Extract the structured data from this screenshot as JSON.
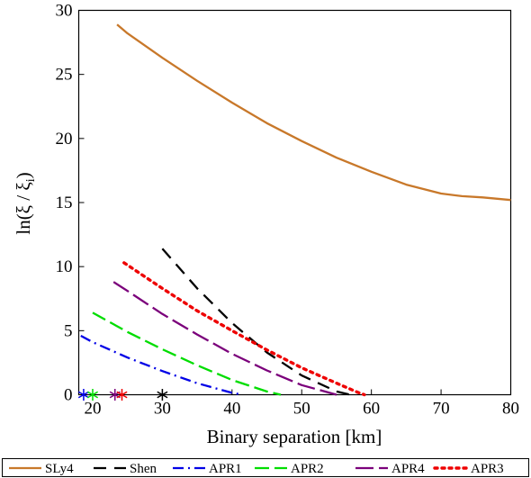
{
  "chart_data": {
    "type": "line",
    "xlabel": "Binary separation [km]",
    "ylabel": "ln(ξ / ξ",
    "ylabel_subscript": "i",
    "ylabel_close": ")",
    "xlim": [
      18,
      80
    ],
    "ylim": [
      0,
      30
    ],
    "xticks": [
      20,
      30,
      40,
      50,
      60,
      70,
      80
    ],
    "yticks": [
      0,
      5,
      10,
      15,
      20,
      25,
      30
    ],
    "grid": false,
    "legend_position": "bottom",
    "series": [
      {
        "name": "SLy4",
        "color": "#c8782a",
        "dash": "solid",
        "x": [
          23.5,
          25,
          30,
          35,
          40,
          45,
          50,
          55,
          60,
          65,
          70,
          73,
          76,
          80
        ],
        "y": [
          28.9,
          28.2,
          26.3,
          24.5,
          22.8,
          21.2,
          19.8,
          18.5,
          17.4,
          16.4,
          15.7,
          15.5,
          15.4,
          15.2
        ]
      },
      {
        "name": "Shen",
        "color": "#000000",
        "dash": "14,9",
        "x": [
          30,
          35,
          40,
          45,
          50,
          55,
          57
        ],
        "y": [
          11.4,
          8.3,
          5.6,
          3.3,
          1.5,
          0.25,
          0
        ]
      },
      {
        "name": "APR1",
        "color": "#0000e6",
        "dash": "12,5,2,5",
        "x": [
          18.3,
          20,
          25,
          30,
          35,
          40,
          41.5
        ],
        "y": [
          4.6,
          4.1,
          2.9,
          1.85,
          0.9,
          0.15,
          0
        ]
      },
      {
        "name": "APR2",
        "color": "#00dd00",
        "dash": "16,6",
        "x": [
          20,
          25,
          30,
          35,
          40,
          45,
          47
        ],
        "y": [
          6.4,
          4.9,
          3.55,
          2.3,
          1.15,
          0.25,
          0
        ]
      },
      {
        "name": "APR4",
        "color": "#7b007b",
        "dash": "20,6",
        "x": [
          23,
          25,
          30,
          35,
          40,
          45,
          50,
          55
        ],
        "y": [
          8.8,
          8.1,
          6.3,
          4.7,
          3.2,
          1.9,
          0.75,
          0
        ]
      },
      {
        "name": "APR3",
        "color": "#ee0000",
        "dash": "3,5",
        "x": [
          24.5,
          30,
          35,
          40,
          45,
          50,
          55,
          58,
          59
        ],
        "y": [
          10.3,
          8.3,
          6.55,
          5.0,
          3.5,
          2.1,
          0.9,
          0.2,
          0
        ]
      }
    ],
    "markers": [
      {
        "x": 18.7,
        "y": 0,
        "color": "#0000e6"
      },
      {
        "x": 20.0,
        "y": 0,
        "color": "#00dd00"
      },
      {
        "x": 23.2,
        "y": 0,
        "color": "#7b007b"
      },
      {
        "x": 24.2,
        "y": 0,
        "color": "#ee0000"
      },
      {
        "x": 30.0,
        "y": 0,
        "color": "#000000"
      }
    ]
  }
}
